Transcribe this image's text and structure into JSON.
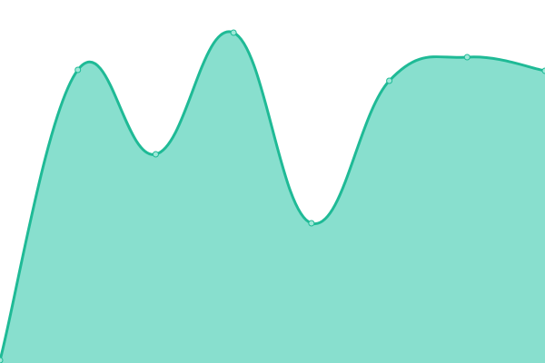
{
  "chart_data": {
    "type": "area",
    "x": [
      0,
      1,
      2,
      3,
      4,
      5,
      6,
      7
    ],
    "series": [
      {
        "values": [
          3,
          323,
          230,
          364,
          154,
          311,
          337,
          322
        ]
      }
    ],
    "ylim": [
      0,
      400
    ],
    "grid": false,
    "axes_visible": false,
    "smooth": true,
    "colors": {
      "line": "#1fba96",
      "fill": "#88dfce",
      "point_fill": "#9ee8d8"
    }
  }
}
